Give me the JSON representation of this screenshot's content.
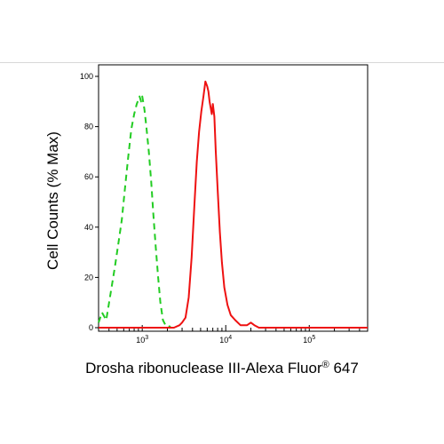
{
  "chart_data": {
    "type": "line",
    "title": "",
    "xlabel": "Drosha ribonuclease III-Alexa Fluor",
    "xlabel_sup": "®",
    "xlabel_suffix": " 647",
    "ylabel": "Cell Counts (% Max)",
    "x_scale": "log",
    "xlim": [
      300,
      500000
    ],
    "ylim": [
      0,
      100
    ],
    "y_ticks": [
      0,
      20,
      40,
      60,
      80,
      100
    ],
    "x_ticks": [
      {
        "value": 1000,
        "base": "10",
        "exp": "3"
      },
      {
        "value": 10000,
        "base": "10",
        "exp": "4"
      },
      {
        "value": 100000,
        "base": "10",
        "exp": "5"
      }
    ],
    "grid": false,
    "legend": "none",
    "series": [
      {
        "color": "#22cc22",
        "style": "dashed",
        "points": [
          [
            300,
            2
          ],
          [
            330,
            6
          ],
          [
            370,
            3
          ],
          [
            420,
            14
          ],
          [
            470,
            24
          ],
          [
            520,
            34
          ],
          [
            570,
            43
          ],
          [
            620,
            55
          ],
          [
            680,
            68
          ],
          [
            740,
            79
          ],
          [
            800,
            85
          ],
          [
            860,
            89
          ],
          [
            930,
            92
          ],
          [
            970,
            90
          ],
          [
            1000,
            92
          ],
          [
            1060,
            87
          ],
          [
            1120,
            80
          ],
          [
            1200,
            70
          ],
          [
            1280,
            58
          ],
          [
            1360,
            45
          ],
          [
            1450,
            32
          ],
          [
            1550,
            20
          ],
          [
            1650,
            10
          ],
          [
            1770,
            3
          ],
          [
            1900,
            1
          ],
          [
            2050,
            1
          ],
          [
            2200,
            0
          ]
        ]
      },
      {
        "color": "#ee1111",
        "style": "solid",
        "points": [
          [
            300,
            0
          ],
          [
            2400,
            0
          ],
          [
            2800,
            1
          ],
          [
            3000,
            2
          ],
          [
            3300,
            4
          ],
          [
            3600,
            12
          ],
          [
            3900,
            28
          ],
          [
            4200,
            48
          ],
          [
            4500,
            66
          ],
          [
            4800,
            78
          ],
          [
            5100,
            86
          ],
          [
            5400,
            92
          ],
          [
            5700,
            98
          ],
          [
            6000,
            96
          ],
          [
            6200,
            94
          ],
          [
            6400,
            90
          ],
          [
            6800,
            85
          ],
          [
            7000,
            89
          ],
          [
            7300,
            84
          ],
          [
            7600,
            70
          ],
          [
            8000,
            55
          ],
          [
            8500,
            38
          ],
          [
            9000,
            26
          ],
          [
            9600,
            16
          ],
          [
            10500,
            9
          ],
          [
            11500,
            5
          ],
          [
            13000,
            3
          ],
          [
            15000,
            1
          ],
          [
            18000,
            1
          ],
          [
            20000,
            2
          ],
          [
            22000,
            1
          ],
          [
            25000,
            0
          ],
          [
            30000,
            0
          ],
          [
            500000,
            0
          ]
        ]
      }
    ]
  }
}
